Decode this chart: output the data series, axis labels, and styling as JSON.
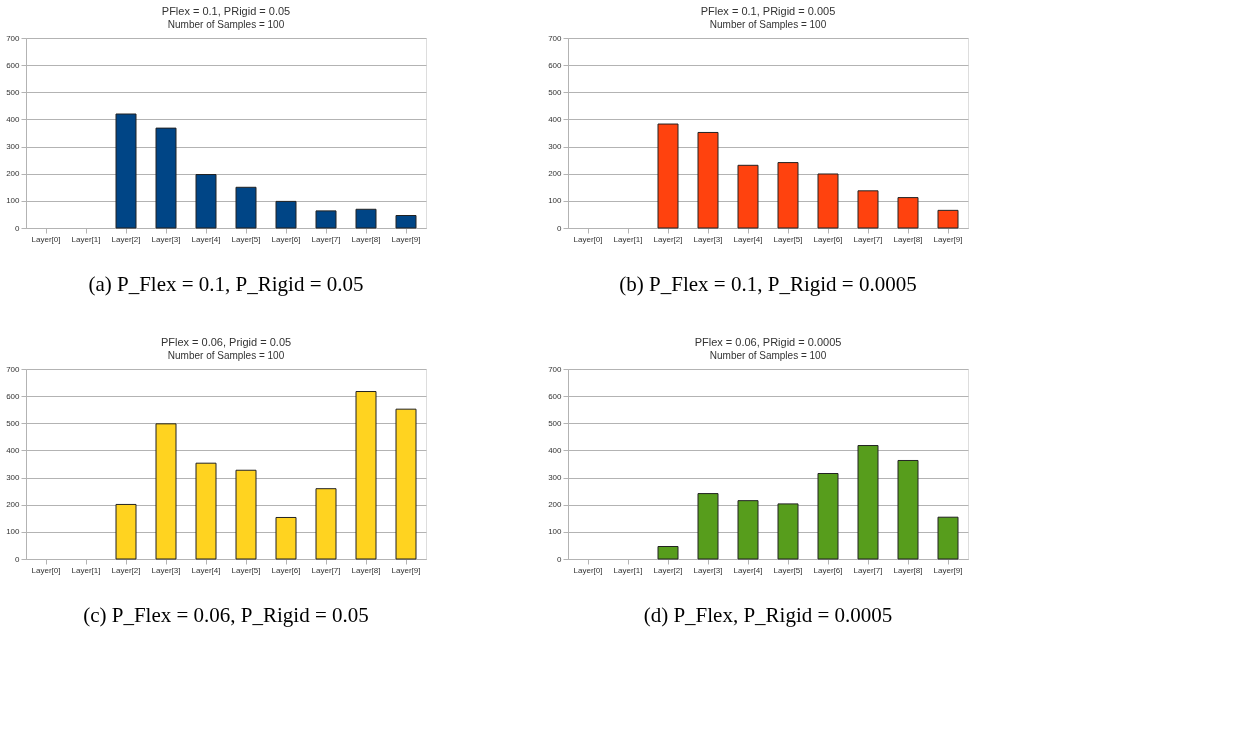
{
  "chart_data": [
    {
      "type": "bar",
      "title": "PFlex = 0.1, PRigid = 0.05",
      "subtitle": "Number of Samples = 100",
      "categories": [
        "Layer[0]",
        "Layer[1]",
        "Layer[2]",
        "Layer[3]",
        "Layer[4]",
        "Layer[5]",
        "Layer[6]",
        "Layer[7]",
        "Layer[8]",
        "Layer[9]"
      ],
      "values": [
        0,
        0,
        420,
        368,
        197,
        150,
        98,
        63,
        69,
        46
      ],
      "color": "#004586",
      "ylim": [
        0,
        700
      ],
      "yticks": [
        0,
        100,
        200,
        300,
        400,
        500,
        600,
        700
      ],
      "grid": "y",
      "annotations": [
        "(a) P_Flex = 0.1, P_Rigid = 0.05"
      ]
    },
    {
      "type": "bar",
      "title": "PFlex = 0.1, PRigid = 0.005",
      "subtitle": "Number of Samples = 100",
      "categories": [
        "Layer[0]",
        "Layer[1]",
        "Layer[2]",
        "Layer[3]",
        "Layer[4]",
        "Layer[5]",
        "Layer[6]",
        "Layer[7]",
        "Layer[8]",
        "Layer[9]"
      ],
      "values": [
        0,
        0,
        383,
        352,
        231,
        241,
        199,
        137,
        112,
        65
      ],
      "color": "#ff420e",
      "ylim": [
        0,
        700
      ],
      "yticks": [
        0,
        100,
        200,
        300,
        400,
        500,
        600,
        700
      ],
      "grid": "y",
      "annotations": [
        "(b) P_Flex = 0.1, P_Rigid = 0.0005"
      ]
    },
    {
      "type": "bar",
      "title": "PFlex = 0.06, Prigid = 0.05",
      "subtitle": "Number of Samples = 100",
      "categories": [
        "Layer[0]",
        "Layer[1]",
        "Layer[2]",
        "Layer[3]",
        "Layer[4]",
        "Layer[5]",
        "Layer[6]",
        "Layer[7]",
        "Layer[8]",
        "Layer[9]"
      ],
      "values": [
        0,
        0,
        201,
        498,
        353,
        327,
        153,
        259,
        617,
        552
      ],
      "color": "#ffd320",
      "ylim": [
        0,
        700
      ],
      "yticks": [
        0,
        100,
        200,
        300,
        400,
        500,
        600,
        700
      ],
      "grid": "y",
      "annotations": [
        "(c) P_Flex = 0.06, P_Rigid = 0.05"
      ]
    },
    {
      "type": "bar",
      "title": "PFlex = 0.06, PRigid = 0.0005",
      "subtitle": "Number of Samples = 100",
      "categories": [
        "Layer[0]",
        "Layer[1]",
        "Layer[2]",
        "Layer[3]",
        "Layer[4]",
        "Layer[5]",
        "Layer[6]",
        "Layer[7]",
        "Layer[8]",
        "Layer[9]"
      ],
      "values": [
        0,
        0,
        46,
        241,
        215,
        203,
        315,
        418,
        363,
        154
      ],
      "color": "#579d1c",
      "ylim": [
        0,
        700
      ],
      "yticks": [
        0,
        100,
        200,
        300,
        400,
        500,
        600,
        700
      ],
      "grid": "y",
      "annotations": [
        "(d) P_Flex, P_Rigid = 0.0005"
      ]
    }
  ]
}
